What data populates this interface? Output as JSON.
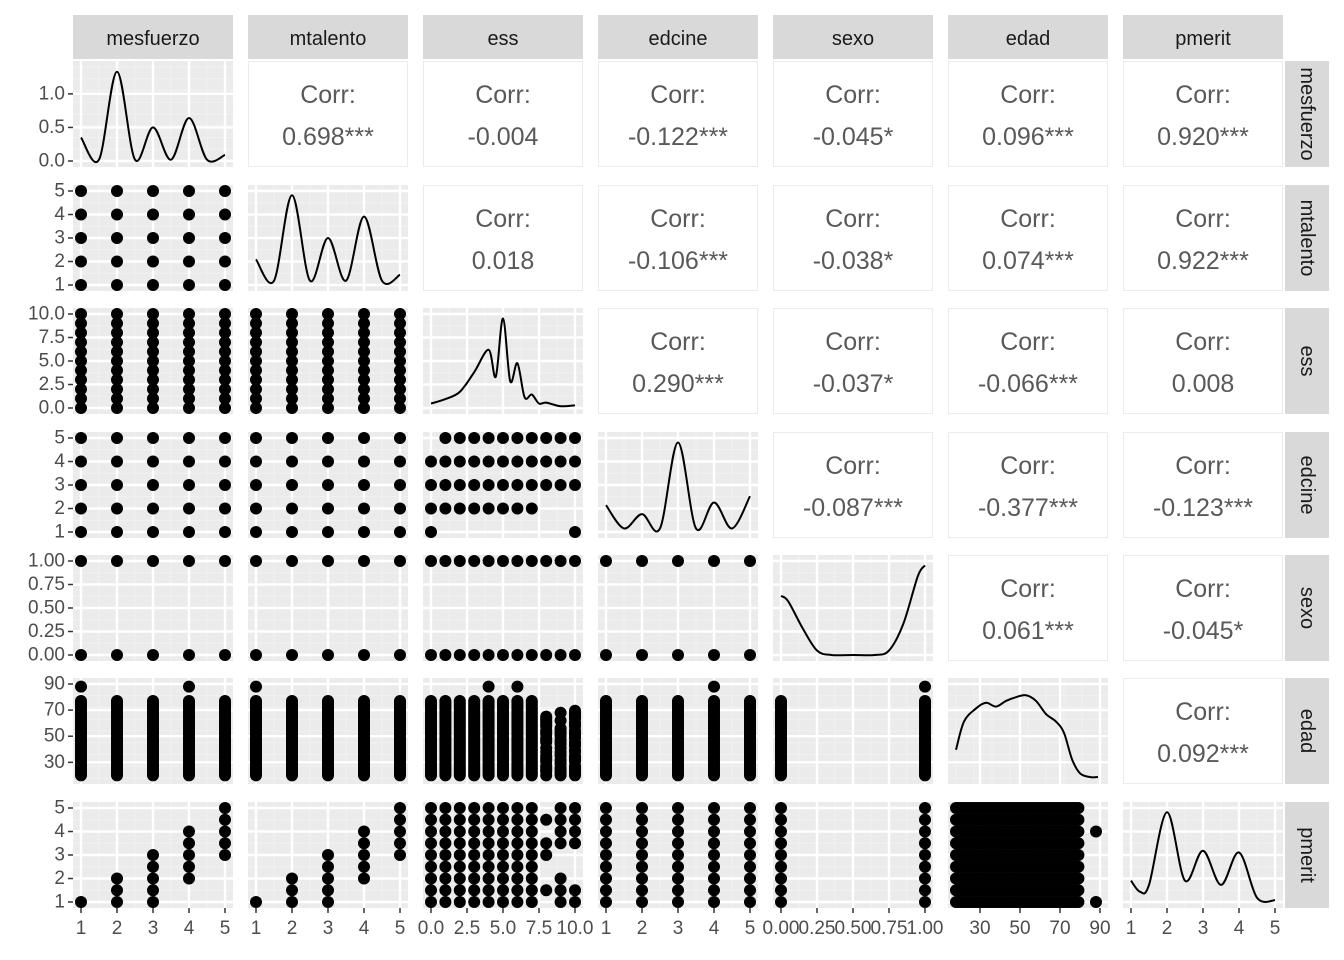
{
  "chart_data": {
    "type": "scatter",
    "variables": [
      "mesfuerzo",
      "mtalento",
      "ess",
      "edcine",
      "sexo",
      "edad",
      "pmerit"
    ],
    "corr_label": "Corr:",
    "correlations": [
      [
        "0.698***",
        "-0.004",
        "-0.122***",
        "-0.045*",
        "0.096***",
        "0.920***"
      ],
      [
        "0.018",
        "-0.106***",
        "-0.038*",
        "0.074***",
        "0.922***"
      ],
      [
        "0.290***",
        "-0.037*",
        "-0.066***",
        "0.008"
      ],
      [
        "-0.087***",
        "-0.377***",
        "-0.123***"
      ],
      [
        "0.061***",
        "-0.045*"
      ],
      [
        "0.092***"
      ]
    ],
    "x_ticks": [
      [
        "1",
        "2",
        "3",
        "4",
        "5"
      ],
      [
        "1",
        "2",
        "3",
        "4",
        "5"
      ],
      [
        "0.0",
        "2.5",
        "5.0",
        "7.5",
        "10.0"
      ],
      [
        "1",
        "2",
        "3",
        "4",
        "5"
      ],
      [
        "0.00",
        "0.25",
        "0.50",
        "0.75",
        "1.00"
      ],
      [
        "30",
        "50",
        "70",
        "90"
      ],
      [
        "1",
        "2",
        "3",
        "4",
        "5"
      ]
    ],
    "y_ticks": [
      [
        "0.0",
        "0.5",
        "1.0"
      ],
      [
        "1",
        "2",
        "3",
        "4",
        "5"
      ],
      [
        "0.0",
        "2.5",
        "5.0",
        "7.5",
        "10.0"
      ],
      [
        "1",
        "2",
        "3",
        "4",
        "5"
      ],
      [
        "0.00",
        "0.25",
        "0.50",
        "0.75",
        "1.00"
      ],
      [
        "30",
        "50",
        "70",
        "90"
      ],
      [
        "1",
        "2",
        "3",
        "4",
        "5"
      ]
    ],
    "densities": {
      "mesfuerzo": {
        "x": [
          1,
          1.5,
          2,
          2.5,
          3,
          3.5,
          4,
          4.5,
          5
        ],
        "y": [
          0.35,
          0.02,
          1.33,
          0.02,
          0.5,
          0.02,
          0.64,
          0.02,
          0.09
        ],
        "ylim": [
          0,
          1.4
        ]
      },
      "mtalento": {
        "x": [
          1,
          1.5,
          2,
          2.5,
          3,
          3.5,
          4,
          4.5,
          5
        ],
        "y": [
          0.3,
          0.05,
          1.05,
          0.05,
          0.55,
          0.05,
          0.8,
          0.05,
          0.12
        ],
        "ylim": [
          0,
          1.1
        ]
      },
      "ess": {
        "x": [
          0,
          1,
          2,
          3,
          4,
          4.5,
          5,
          5.5,
          6,
          6.5,
          7,
          7.5,
          8,
          9,
          10
        ],
        "y": [
          0.05,
          0.1,
          0.18,
          0.4,
          0.65,
          0.35,
          1.0,
          0.3,
          0.5,
          0.12,
          0.15,
          0.05,
          0.06,
          0.02,
          0.03
        ],
        "ylim": [
          0,
          1.05
        ]
      },
      "edcine": {
        "x": [
          1,
          1.5,
          2,
          2.5,
          3,
          3.5,
          4,
          4.5,
          5
        ],
        "y": [
          0.3,
          0.04,
          0.2,
          0.04,
          1.0,
          0.04,
          0.33,
          0.04,
          0.4
        ],
        "ylim": [
          0,
          1.05
        ]
      },
      "sexo": {
        "x": [
          0,
          0.05,
          0.15,
          0.25,
          0.35,
          0.5,
          0.65,
          0.75,
          0.85,
          0.95,
          1
        ],
        "y": [
          0.66,
          0.6,
          0.3,
          0.05,
          0.0,
          0.0,
          0.0,
          0.05,
          0.35,
          0.88,
          1.0
        ],
        "ylim": [
          0,
          1.05
        ]
      },
      "edad": {
        "x": [
          18,
          22,
          28,
          33,
          38,
          43,
          48,
          53,
          58,
          63,
          68,
          72,
          76,
          80,
          85,
          89
        ],
        "y": [
          0.3,
          0.6,
          0.74,
          0.8,
          0.76,
          0.82,
          0.86,
          0.88,
          0.82,
          0.68,
          0.6,
          0.48,
          0.2,
          0.05,
          0.01,
          0.01
        ],
        "ylim": [
          0,
          1.0
        ]
      },
      "pmerit": {
        "x": [
          1,
          1.25,
          1.5,
          2,
          2.5,
          3,
          3.5,
          4,
          4.5,
          5
        ],
        "y": [
          0.25,
          0.12,
          0.2,
          1.05,
          0.25,
          0.6,
          0.2,
          0.58,
          0.05,
          0.02
        ],
        "ylim": [
          0,
          1.1
        ]
      }
    }
  }
}
